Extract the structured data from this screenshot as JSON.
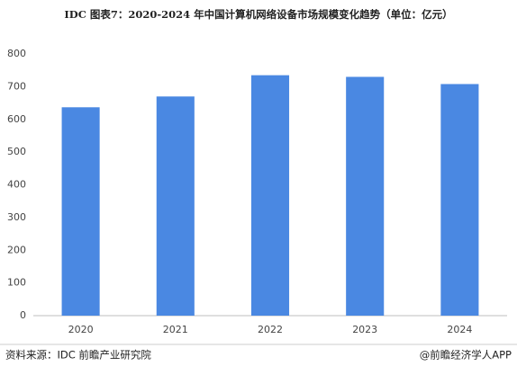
{
  "chart_data": {
    "type": "bar",
    "title": "IDC  图表7：2020-2024 年中国计算机网络设备市场规模变化趋势（单位：亿元）",
    "categories": [
      "2020",
      "2021",
      "2022",
      "2023",
      "2024"
    ],
    "values": [
      637,
      670,
      735,
      730,
      708
    ],
    "color": "#4a88e2",
    "ylim": [
      0,
      800
    ],
    "yticks": [
      0,
      100,
      200,
      300,
      400,
      500,
      600,
      700,
      800
    ],
    "grid": false,
    "source": "资料来源：IDC 前瞻产业研究院",
    "credit": "@前瞻经济学人APP"
  }
}
